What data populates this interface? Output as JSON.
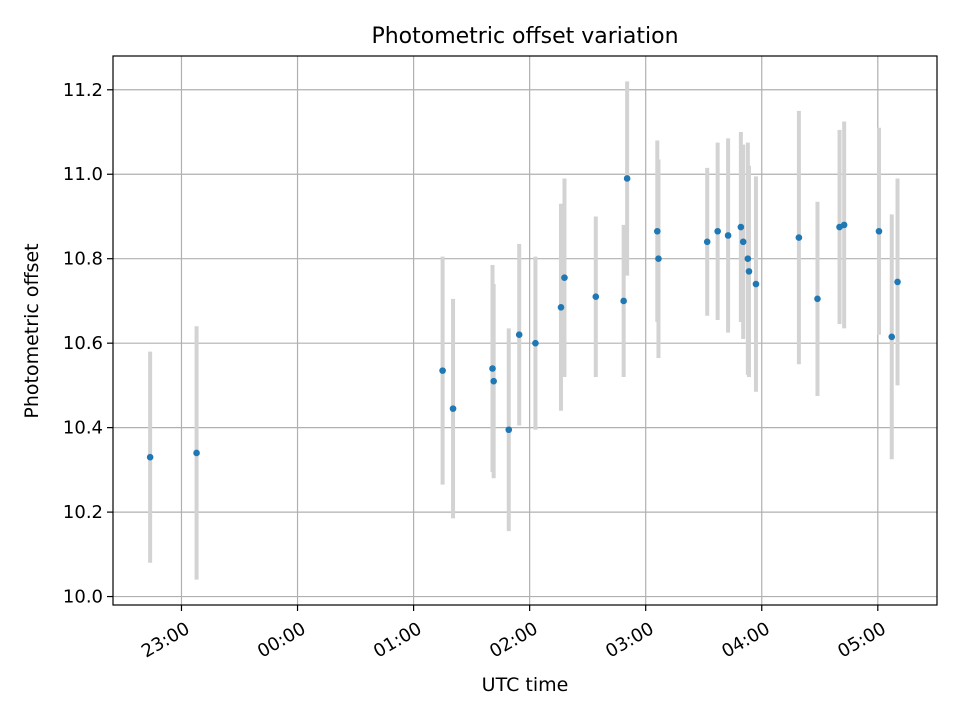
{
  "chart_data": {
    "type": "scatter",
    "title": "Photometric offset variation",
    "xlabel": "UTC time",
    "ylabel": "Photometric offset",
    "x_unit": "hours relative to 00:00 UTC",
    "xlim": [
      -1.59,
      5.51
    ],
    "ylim": [
      9.98,
      11.28
    ],
    "grid": true,
    "x_ticks": [
      {
        "value": -1,
        "label": "23:00"
      },
      {
        "value": 0,
        "label": "00:00"
      },
      {
        "value": 1,
        "label": "01:00"
      },
      {
        "value": 2,
        "label": "02:00"
      },
      {
        "value": 3,
        "label": "03:00"
      },
      {
        "value": 4,
        "label": "04:00"
      },
      {
        "value": 5,
        "label": "05:00"
      }
    ],
    "y_ticks": [
      {
        "value": 10.0,
        "label": "10.0"
      },
      {
        "value": 10.2,
        "label": "10.2"
      },
      {
        "value": 10.4,
        "label": "10.4"
      },
      {
        "value": 10.6,
        "label": "10.6"
      },
      {
        "value": 10.8,
        "label": "10.8"
      },
      {
        "value": 11.0,
        "label": "11.0"
      },
      {
        "value": 11.2,
        "label": "11.2"
      }
    ],
    "colors": {
      "point": "#1f77b4",
      "error_bar": "#d3d3d3",
      "grid": "#b0b0b0"
    },
    "series": [
      {
        "name": "offset",
        "points": [
          {
            "x": -1.27,
            "y": 10.33,
            "err": 0.25
          },
          {
            "x": -0.87,
            "y": 10.34,
            "err": 0.3
          },
          {
            "x": 1.25,
            "y": 10.535,
            "err": 0.27
          },
          {
            "x": 1.34,
            "y": 10.445,
            "err": 0.26
          },
          {
            "x": 1.68,
            "y": 10.54,
            "err": 0.245
          },
          {
            "x": 1.69,
            "y": 10.51,
            "err": 0.23
          },
          {
            "x": 1.82,
            "y": 10.395,
            "err": 0.24
          },
          {
            "x": 1.91,
            "y": 10.62,
            "err": 0.215
          },
          {
            "x": 2.05,
            "y": 10.6,
            "err": 0.205
          },
          {
            "x": 2.27,
            "y": 10.685,
            "err": 0.245
          },
          {
            "x": 2.3,
            "y": 10.755,
            "err": 0.235
          },
          {
            "x": 2.57,
            "y": 10.71,
            "err": 0.19
          },
          {
            "x": 2.81,
            "y": 10.7,
            "err": 0.18
          },
          {
            "x": 2.84,
            "y": 10.99,
            "err": 0.23
          },
          {
            "x": 3.1,
            "y": 10.865,
            "err": 0.215
          },
          {
            "x": 3.11,
            "y": 10.8,
            "err": 0.235
          },
          {
            "x": 3.53,
            "y": 10.84,
            "err": 0.175
          },
          {
            "x": 3.62,
            "y": 10.865,
            "err": 0.21
          },
          {
            "x": 3.71,
            "y": 10.855,
            "err": 0.23
          },
          {
            "x": 3.82,
            "y": 10.875,
            "err": 0.225
          },
          {
            "x": 3.84,
            "y": 10.84,
            "err": 0.23
          },
          {
            "x": 3.88,
            "y": 10.8,
            "err": 0.275
          },
          {
            "x": 3.89,
            "y": 10.77,
            "err": 0.25
          },
          {
            "x": 3.95,
            "y": 10.74,
            "err": 0.255
          },
          {
            "x": 4.32,
            "y": 10.85,
            "err": 0.3
          },
          {
            "x": 4.48,
            "y": 10.705,
            "err": 0.23
          },
          {
            "x": 4.67,
            "y": 10.875,
            "err": 0.23
          },
          {
            "x": 4.71,
            "y": 10.88,
            "err": 0.245
          },
          {
            "x": 5.01,
            "y": 10.865,
            "err": 0.245
          },
          {
            "x": 5.12,
            "y": 10.615,
            "err": 0.29
          },
          {
            "x": 5.17,
            "y": 10.745,
            "err": 0.245
          }
        ]
      }
    ]
  }
}
